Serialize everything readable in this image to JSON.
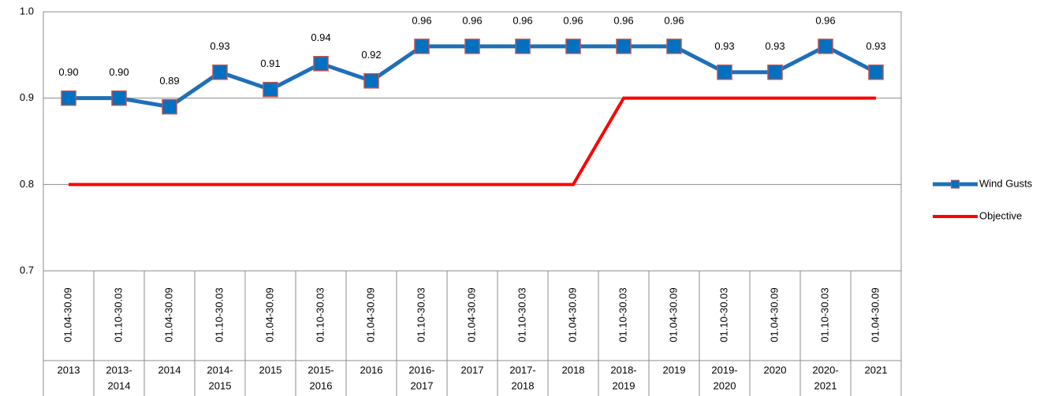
{
  "chart_data": {
    "type": "line",
    "categories": [
      "01.04-30.09",
      "01.10-30.03",
      "01.04-30.09",
      "01.10-30.03",
      "01.04-30.09",
      "01.10-30.03",
      "01.04-30.09",
      "01.10-30.03",
      "01.04-30.09",
      "01.10-30.03",
      "01.04-30.09",
      "01.10-30.03",
      "01.04-30.09",
      "01.10-30.03",
      "01.04-30.09",
      "01.10-30.03",
      "01.04-30.09"
    ],
    "category_groups": [
      [
        "2013"
      ],
      [
        "2013-",
        "2014"
      ],
      [
        "2014"
      ],
      [
        "2014-",
        "2015"
      ],
      [
        "2015"
      ],
      [
        "2015-",
        "2016"
      ],
      [
        "2016"
      ],
      [
        "2016-",
        "2017"
      ],
      [
        "2017"
      ],
      [
        "2017-",
        "2018"
      ],
      [
        "2018"
      ],
      [
        "2018-",
        "2019"
      ],
      [
        "2019"
      ],
      [
        "2019-",
        "2020"
      ],
      [
        "2020"
      ],
      [
        "2020-",
        "2021"
      ],
      [
        "2021"
      ]
    ],
    "series": [
      {
        "name": "Wind Gusts",
        "color": "#1f6fb8",
        "marker_color": "#0070c0",
        "marker_edge": "#c0504d",
        "values": [
          0.9,
          0.9,
          0.89,
          0.93,
          0.91,
          0.94,
          0.92,
          0.96,
          0.96,
          0.96,
          0.96,
          0.96,
          0.96,
          0.93,
          0.93,
          0.96,
          0.93
        ],
        "value_labels": [
          "0.90",
          "0.90",
          "0.89",
          "0.93",
          "0.91",
          "0.94",
          "0.92",
          "0.96",
          "0.96",
          "0.96",
          "0.96",
          "0.96",
          "0.96",
          "0.93",
          "0.93",
          "0.96",
          "0.93"
        ]
      },
      {
        "name": "Objective",
        "color": "#ff0000",
        "values": [
          0.8,
          0.8,
          0.8,
          0.8,
          0.8,
          0.8,
          0.8,
          0.8,
          0.8,
          0.8,
          0.8,
          0.9,
          0.9,
          0.9,
          0.9,
          0.9,
          0.9
        ]
      }
    ],
    "ylim": [
      0.7,
      1.0
    ],
    "yticks": [
      0.7,
      0.8,
      0.9,
      {
        "value": 1,
        "label": "1.0"
      }
    ],
    "grid": true,
    "legend": "right"
  }
}
